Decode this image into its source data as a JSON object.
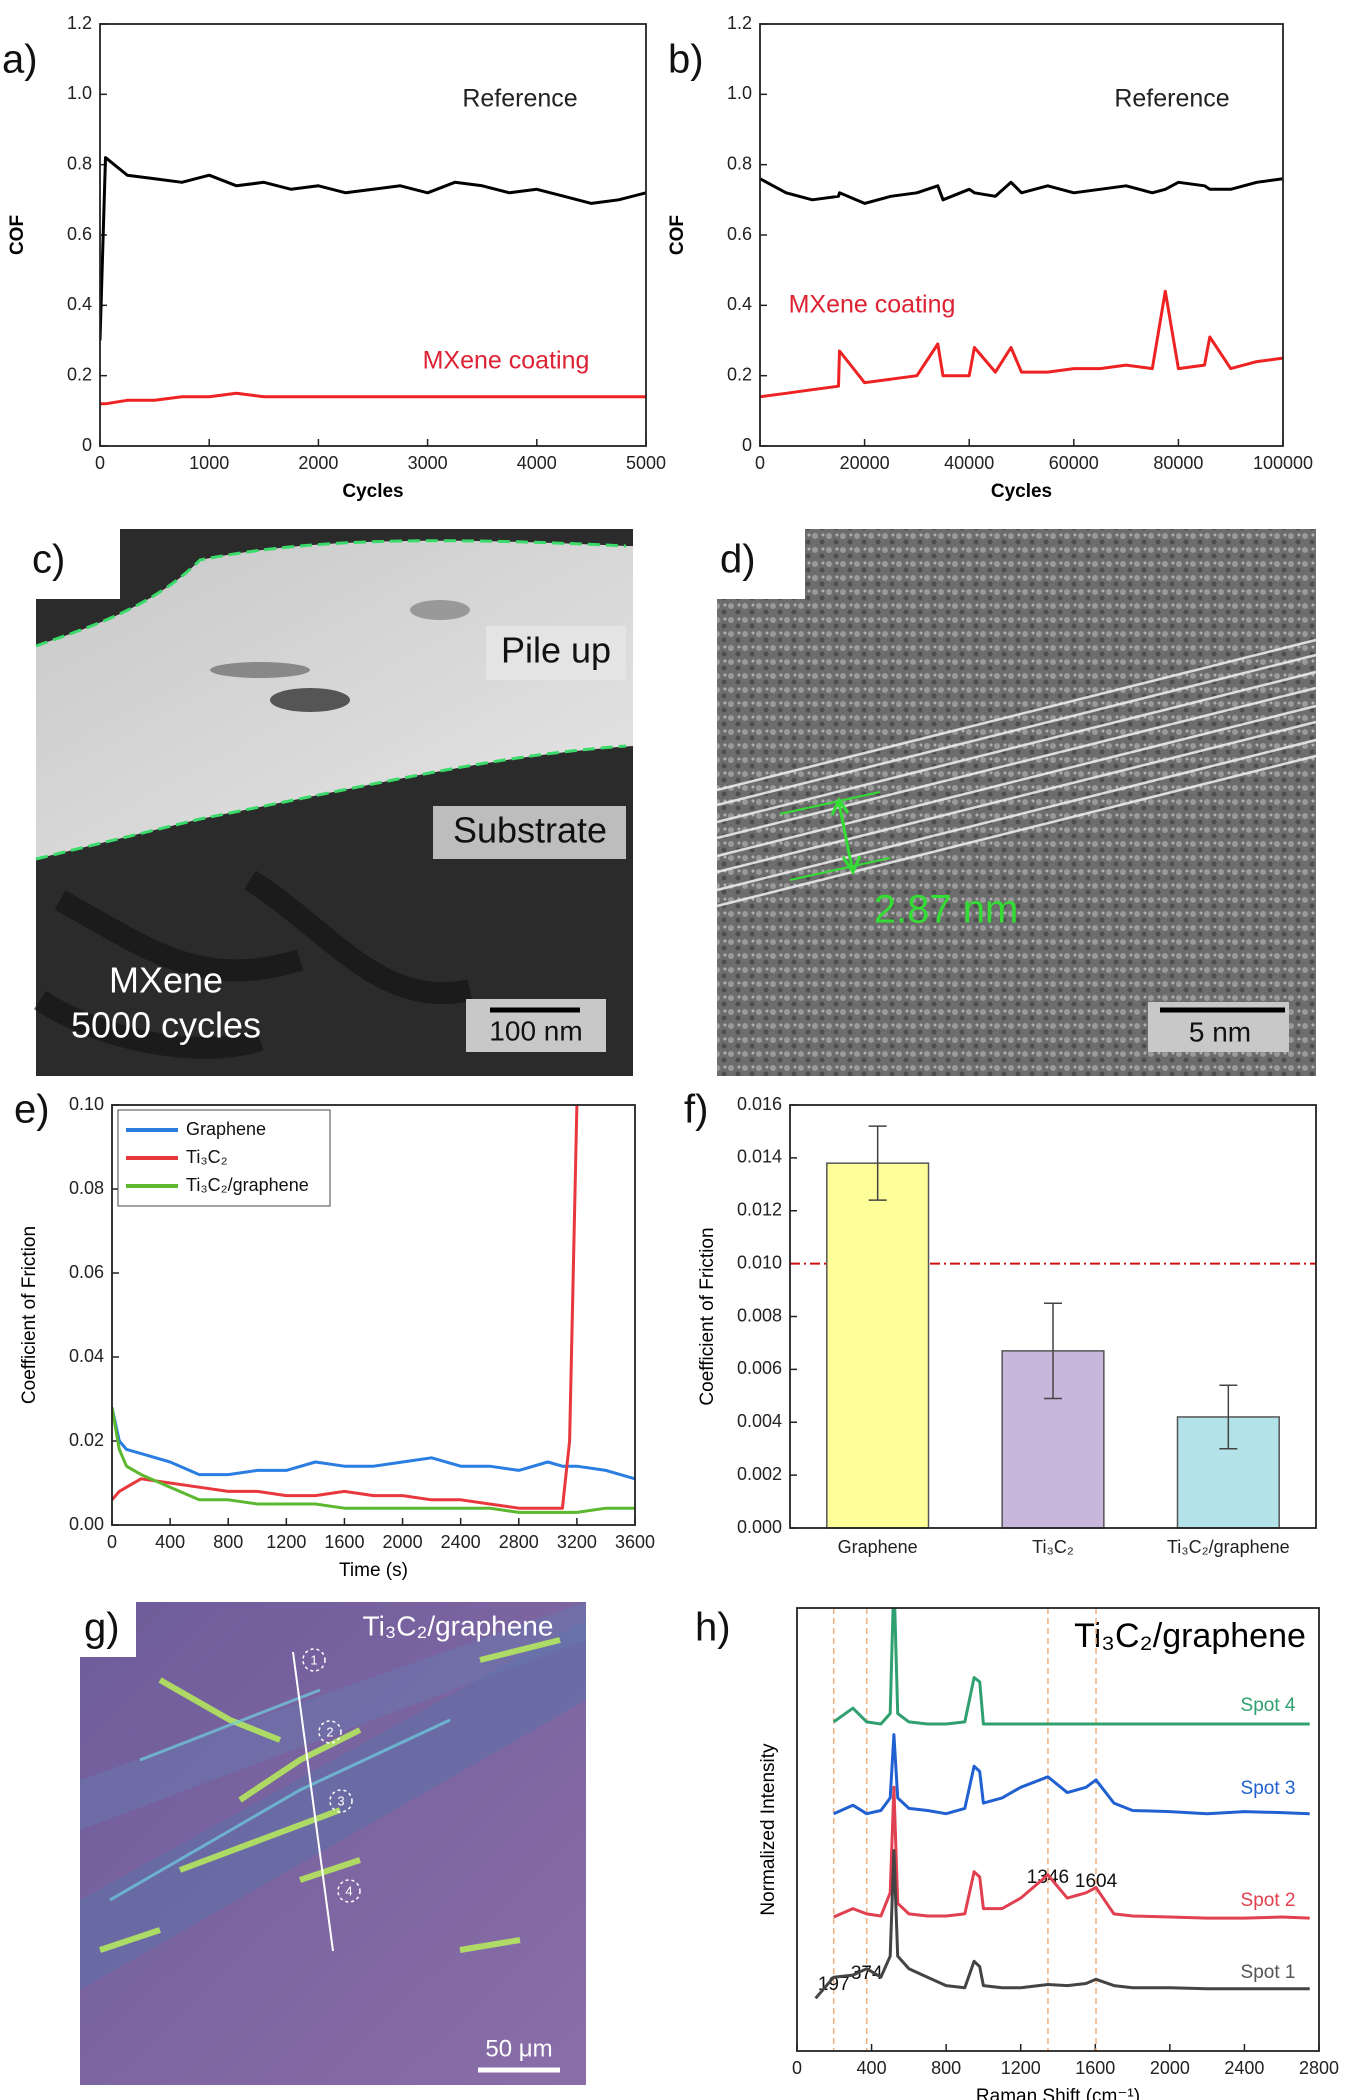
{
  "panel_labels": [
    "a)",
    "b)",
    "c)",
    "d)",
    "e)",
    "f)",
    "g)",
    "h)"
  ],
  "images": {
    "c": {
      "labels": [
        "Pile up",
        "Substrate",
        "MXene",
        "5000 cycles"
      ],
      "scale_bar": "100 nm"
    },
    "d": {
      "measurement": "2.87 nm",
      "scale_bar": "5 nm"
    },
    "g": {
      "title": "Ti₃C₂/graphene",
      "spots": [
        "1",
        "2",
        "3",
        "4"
      ],
      "scale_bar": "50 μm"
    }
  },
  "chart_data": [
    {
      "type": "line",
      "xlabel": "Cycles",
      "ylabel": "COF",
      "legend": "inline",
      "x": [
        0,
        50,
        250,
        500,
        750,
        1000,
        1250,
        1500,
        1750,
        2000,
        2250,
        2500,
        2750,
        3000,
        3250,
        3500,
        3750,
        4000,
        4250,
        4500,
        4750,
        5000
      ],
      "series": [
        {
          "name": "Reference",
          "color": "#000000",
          "label_color": "#222222",
          "values": [
            0.3,
            0.82,
            0.77,
            0.76,
            0.75,
            0.77,
            0.74,
            0.75,
            0.73,
            0.74,
            0.72,
            0.73,
            0.74,
            0.72,
            0.75,
            0.74,
            0.72,
            0.73,
            0.71,
            0.69,
            0.7,
            0.72
          ]
        },
        {
          "name": "MXene coating",
          "color": "#ee2222",
          "label_color": "#dd2233",
          "values": [
            0.12,
            0.12,
            0.13,
            0.13,
            0.14,
            0.14,
            0.15,
            0.14,
            0.14,
            0.14,
            0.14,
            0.14,
            0.14,
            0.14,
            0.14,
            0.14,
            0.14,
            0.14,
            0.14,
            0.14,
            0.14,
            0.14
          ]
        }
      ],
      "xlim": [
        0,
        5000
      ],
      "xticks": [
        0,
        1000,
        2000,
        3000,
        4000,
        5000
      ],
      "ylim": [
        0,
        1.2
      ],
      "yticks": [
        0,
        0.2,
        0.4,
        0.6,
        0.8,
        {
          "value": 1,
          "label": "1.0"
        },
        1.2
      ]
    },
    {
      "type": "line",
      "xlabel": "Cycles",
      "ylabel": "COF",
      "legend": "inline",
      "x": [
        0,
        5000,
        10000,
        15000,
        15200,
        20000,
        25000,
        30000,
        34000,
        35000,
        40000,
        41000,
        45000,
        48000,
        50000,
        55000,
        60000,
        65000,
        70000,
        75000,
        77500,
        80000,
        85000,
        86000,
        90000,
        95000,
        100000
      ],
      "series": [
        {
          "name": "Reference",
          "color": "#000000",
          "label_color": "#222222",
          "values": [
            0.76,
            0.72,
            0.7,
            0.71,
            0.72,
            0.69,
            0.71,
            0.72,
            0.74,
            0.7,
            0.73,
            0.72,
            0.71,
            0.75,
            0.72,
            0.74,
            0.72,
            0.73,
            0.74,
            0.72,
            0.73,
            0.75,
            0.74,
            0.73,
            0.73,
            0.75,
            0.76
          ]
        },
        {
          "name": "MXene coating",
          "color": "#ee2222",
          "label_color": "#dd2233",
          "values": [
            0.14,
            0.15,
            0.16,
            0.17,
            0.27,
            0.18,
            0.19,
            0.2,
            0.29,
            0.2,
            0.2,
            0.28,
            0.21,
            0.28,
            0.21,
            0.21,
            0.22,
            0.22,
            0.23,
            0.22,
            0.44,
            0.22,
            0.23,
            0.31,
            0.22,
            0.24,
            0.25
          ]
        }
      ],
      "xlim": [
        0,
        100000
      ],
      "xticks": [
        0,
        20000,
        40000,
        60000,
        80000,
        100000
      ],
      "ylim": [
        0,
        1.2
      ],
      "yticks": [
        0,
        0.2,
        0.4,
        0.6,
        0.8,
        {
          "value": 1,
          "label": "1.0"
        },
        1.2
      ]
    },
    {
      "type": "line",
      "xlabel": "Time (s)",
      "ylabel": "Coefficient of Friction",
      "legend": "upper left",
      "x": [
        0,
        50,
        100,
        200,
        400,
        600,
        800,
        1000,
        1200,
        1400,
        1600,
        1800,
        2000,
        2200,
        2400,
        2600,
        2800,
        3000,
        3100,
        3150,
        3200,
        3400,
        3600
      ],
      "series": [
        {
          "name": "Graphene",
          "color": "#2a7de1",
          "values": [
            0.028,
            0.02,
            0.018,
            0.017,
            0.015,
            0.012,
            0.012,
            0.013,
            0.013,
            0.015,
            0.014,
            0.014,
            0.015,
            0.016,
            0.014,
            0.014,
            0.013,
            0.015,
            0.014,
            0.014,
            0.014,
            0.013,
            0.011
          ]
        },
        {
          "name": "Ti₃C₂",
          "color": "#e8383d",
          "values": [
            0.006,
            0.008,
            0.009,
            0.011,
            0.01,
            0.009,
            0.008,
            0.008,
            0.007,
            0.007,
            0.008,
            0.007,
            0.007,
            0.006,
            0.006,
            0.005,
            0.004,
            0.004,
            0.004,
            0.02,
            0.1,
            null,
            null
          ]
        },
        {
          "name": "Ti₃C₂/graphene",
          "color": "#5cb82e",
          "values": [
            0.028,
            0.018,
            0.014,
            0.012,
            0.009,
            0.006,
            0.006,
            0.005,
            0.005,
            0.005,
            0.004,
            0.004,
            0.004,
            0.004,
            0.004,
            0.004,
            0.003,
            0.003,
            0.003,
            0.003,
            0.003,
            0.004,
            0.004
          ]
        }
      ],
      "xlim": [
        0,
        3600
      ],
      "xticks": [
        0,
        400,
        800,
        1200,
        1600,
        2000,
        2400,
        2800,
        3200,
        3600
      ],
      "ylim": [
        0,
        0.1
      ],
      "yticks": [
        {
          "value": 0,
          "label": "0.00"
        },
        0.02,
        0.04,
        0.06,
        0.08,
        {
          "value": 0.1,
          "label": "0.10"
        }
      ]
    },
    {
      "type": "bar",
      "ylabel": "Coefficient of Friction",
      "categories": [
        "Graphene",
        "Ti₃C₂",
        "Ti₃C₂/graphene"
      ],
      "values": [
        0.0138,
        0.0067,
        0.0042
      ],
      "errors": [
        0.0014,
        0.0018,
        0.0012
      ],
      "colors": [
        "#ffff99",
        "#c9b6dc",
        "#b3e2e8"
      ],
      "hline": 0.01,
      "hline_color": "#cc1111",
      "ylim": [
        0,
        0.016
      ],
      "yticks": [
        {
          "value": 0,
          "label": "0.000"
        },
        0.002,
        0.004,
        0.006,
        0.008,
        {
          "value": 0.01,
          "label": "0.010"
        },
        0.012,
        0.014,
        0.016
      ]
    },
    {
      "type": "line",
      "title": "Ti₃C₂/graphene",
      "xlabel": "Raman Shift (cm⁻¹)",
      "ylabel": "Normalized Intensity",
      "legend": "inline",
      "x": [
        0,
        100,
        197,
        300,
        374,
        450,
        500,
        520,
        540,
        600,
        700,
        800,
        900,
        950,
        980,
        1000,
        1100,
        1200,
        1346,
        1450,
        1550,
        1604,
        1700,
        1800,
        2000,
        2200,
        2400,
        2600,
        2750
      ],
      "series": [
        {
          "name": "Spot 4",
          "color": "#30a070",
          "label_color": "#30a070",
          "values": [
            null,
            null,
            3.12,
            3.25,
            3.12,
            3.1,
            3.2,
            4.5,
            3.2,
            3.12,
            3.1,
            3.1,
            3.12,
            3.54,
            3.5,
            3.1,
            3.1,
            3.1,
            3.1,
            3.1,
            3.1,
            3.1,
            3.1,
            3.1,
            3.1,
            3.1,
            3.1,
            3.1,
            3.1
          ]
        },
        {
          "name": "Spot 3",
          "color": "#2060d0",
          "label_color": "#2060d0",
          "values": [
            null,
            null,
            2.25,
            2.33,
            2.25,
            2.28,
            2.4,
            3.0,
            2.4,
            2.3,
            2.28,
            2.25,
            2.3,
            2.7,
            2.65,
            2.35,
            2.4,
            2.5,
            2.6,
            2.45,
            2.5,
            2.57,
            2.35,
            2.28,
            2.27,
            2.25,
            2.27,
            2.26,
            2.25
          ]
        },
        {
          "name": "Spot 2",
          "color": "#e04050",
          "label_color": "#e04050",
          "values": [
            null,
            null,
            1.27,
            1.35,
            1.3,
            1.28,
            1.5,
            2.5,
            1.4,
            1.3,
            1.28,
            1.28,
            1.3,
            1.7,
            1.65,
            1.35,
            1.35,
            1.45,
            1.67,
            1.45,
            1.5,
            1.55,
            1.3,
            1.28,
            1.27,
            1.26,
            1.26,
            1.27,
            1.26
          ]
        },
        {
          "name": "Spot 1",
          "color": "#444444",
          "label_color": "#555555",
          "values": [
            null,
            0.5,
            0.7,
            0.72,
            0.78,
            0.7,
            0.9,
            1.9,
            0.9,
            0.78,
            0.7,
            0.62,
            0.6,
            0.85,
            0.8,
            0.62,
            0.6,
            0.6,
            0.63,
            0.62,
            0.64,
            0.68,
            0.62,
            0.6,
            0.6,
            0.59,
            0.59,
            0.59,
            0.59
          ]
        }
      ],
      "peak_labels": [
        197,
        374,
        1346,
        1604
      ],
      "xlim": [
        0,
        2800
      ],
      "xticks": [
        0,
        400,
        800,
        1200,
        1600,
        2000,
        2400,
        2800
      ],
      "ylim": [
        0,
        4.2
      ]
    }
  ]
}
